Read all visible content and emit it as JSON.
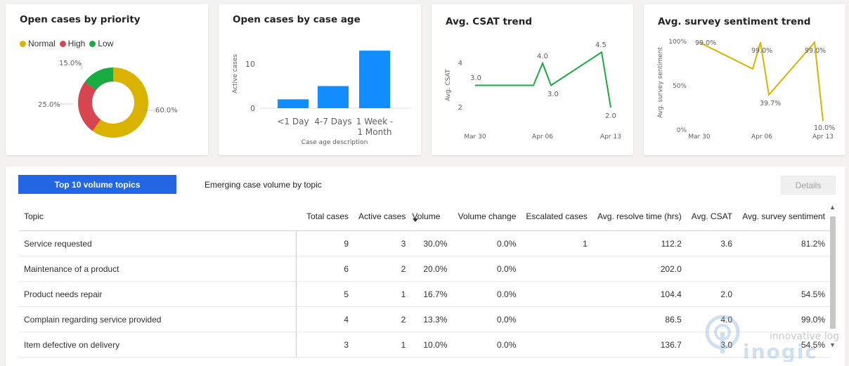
{
  "colors": {
    "normal": "#d9b300",
    "high": "#d64550",
    "low": "#1aab40",
    "bar": "#118dff",
    "csat_line": "#1aab40",
    "sentiment_line": "#d9b300",
    "accent": "#2266e3"
  },
  "priority_card": {
    "title": "Open cases by priority",
    "legend": [
      {
        "label": "Normal",
        "color": "#d9b300"
      },
      {
        "label": "High",
        "color": "#d64550"
      },
      {
        "label": "Low",
        "color": "#1aab40"
      }
    ],
    "labels": {
      "normal": "60.0%",
      "high": "25.0%",
      "low": "15.0%"
    }
  },
  "age_card": {
    "title": "Open cases by case age",
    "ylabel": "Active cases",
    "xlabel": "Case age description",
    "ytick_0": "0",
    "ytick_10": "10",
    "cat1": "<1 Day",
    "cat2": "4-7 Days",
    "cat3a": "1 Week -",
    "cat3b": "1 Month"
  },
  "csat_card": {
    "title": "Avg. CSAT trend",
    "ylabel": "Avg. CSAT",
    "ytick_4": "4",
    "ytick_2": "2",
    "x1": "Mar 30",
    "x2": "Apr 06",
    "x3": "Apr 13",
    "lbl_a": "3.0",
    "lbl_b": "4.0",
    "lbl_c": "3.0",
    "lbl_d": "4.5",
    "lbl_e": "2.0"
  },
  "sentiment_card": {
    "title": "Avg. survey sentiment trend",
    "ylabel": "Avg. survey sentiment",
    "ytick_100": "100%",
    "ytick_50": "50%",
    "ytick_0": "0%",
    "x1": "Mar 30",
    "x2": "Apr 06",
    "x3": "Apr 13",
    "lbl_a": "99.0%",
    "lbl_b": "99.0%",
    "lbl_c": "39.7%",
    "lbl_d": "99.0%",
    "lbl_e": "10.0%"
  },
  "chart_data": [
    {
      "type": "pie",
      "title": "Open cases by priority",
      "categories": [
        "Normal",
        "High",
        "Low"
      ],
      "values": [
        60.0,
        25.0,
        15.0
      ],
      "legend": "top-left"
    },
    {
      "type": "bar",
      "title": "Open cases by case age",
      "categories": [
        "<1 Day",
        "4-7 Days",
        "1 Week - 1 Month"
      ],
      "values": [
        2,
        5,
        13
      ],
      "xlabel": "Case age description",
      "ylabel": "Active cases",
      "ylim": [
        0,
        15
      ]
    },
    {
      "type": "line",
      "title": "Avg. CSAT trend",
      "ylabel": "Avg. CSAT",
      "x_ticks": [
        "Mar 30",
        "Apr 06",
        "Apr 13"
      ],
      "y_ticks": [
        2,
        4
      ],
      "points": [
        3.0,
        3.0,
        3.0,
        4.0,
        3.0,
        4.5,
        2.0
      ],
      "labeled_values": [
        3.0,
        4.0,
        3.0,
        4.5,
        2.0
      ]
    },
    {
      "type": "line",
      "title": "Avg. survey sentiment trend",
      "ylabel": "Avg. survey sentiment",
      "x_ticks": [
        "Mar 30",
        "Apr 06",
        "Apr 13"
      ],
      "y_ticks": [
        "0%",
        "50%",
        "100%"
      ],
      "points": [
        99.0,
        69.0,
        99.0,
        39.7,
        99.0,
        10.0
      ],
      "labeled_values": [
        99.0,
        99.0,
        39.7,
        99.0,
        10.0
      ]
    }
  ],
  "tabs": {
    "active": "Top 10 volume topics",
    "other": "Emerging case volume by topic",
    "details": "Details"
  },
  "table": {
    "headers": [
      "Topic",
      "Total cases",
      "Active cases",
      "Volume",
      "Volume change",
      "Escalated cases",
      "Avg. resolve time (hrs)",
      "Avg. CSAT",
      "Avg. survey sentiment"
    ],
    "rows": [
      [
        "Service requested",
        "9",
        "3",
        "30.0%",
        "0.0%",
        "1",
        "112.2",
        "3.6",
        "81.2%"
      ],
      [
        "Maintenance of a product",
        "6",
        "2",
        "20.0%",
        "0.0%",
        "",
        "202.0",
        "",
        ""
      ],
      [
        "Product needs repair",
        "5",
        "1",
        "16.7%",
        "0.0%",
        "",
        "104.4",
        "2.0",
        "54.5%"
      ],
      [
        "Complain regarding service provided",
        "4",
        "2",
        "13.3%",
        "0.0%",
        "",
        "86.5",
        "4.0",
        "99.0%"
      ],
      [
        "Item defective on delivery",
        "3",
        "1",
        "10.0%",
        "0.0%",
        "",
        "136.7",
        "3.0",
        "54.5%"
      ]
    ]
  },
  "watermark": {
    "line1": "innovative logic",
    "line2": "inogic"
  }
}
